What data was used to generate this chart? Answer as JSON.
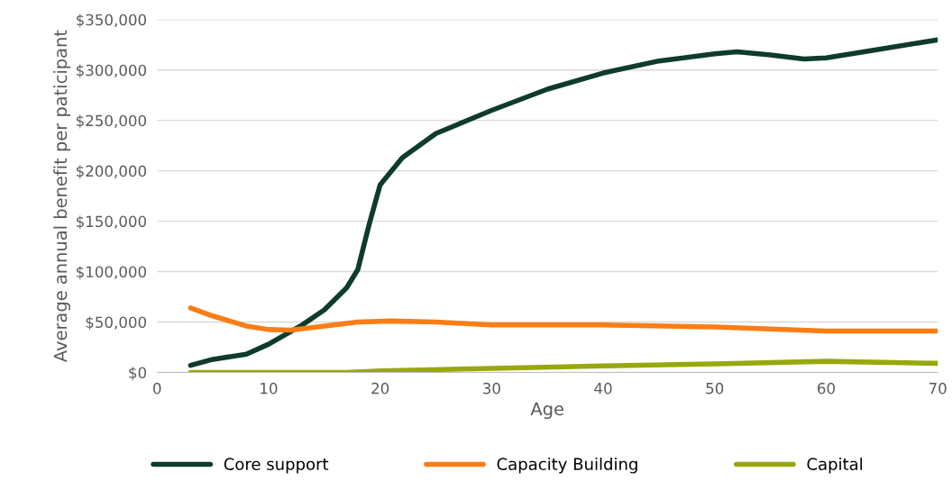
{
  "chart_data": {
    "type": "line",
    "xlabel": "Age",
    "ylabel": "Average annual benefit per paticipant",
    "xlim": [
      0,
      70
    ],
    "xticks": [
      0,
      10,
      20,
      30,
      40,
      50,
      60,
      70
    ],
    "ylim": [
      0,
      350000
    ],
    "yticks": [
      {
        "value": 0,
        "label": "$0"
      },
      {
        "value": 50000,
        "label": "$50,000"
      },
      {
        "value": 100000,
        "label": "$100,000"
      },
      {
        "value": 150000,
        "label": "$150,000"
      },
      {
        "value": 200000,
        "label": "$200,000"
      },
      {
        "value": 250000,
        "label": "$250,000"
      },
      {
        "value": 300000,
        "label": "$300,000"
      },
      {
        "value": 350000,
        "label": "$350,000"
      }
    ],
    "grid": "y",
    "legend": "bottom",
    "marker": "none",
    "line_style": "solid",
    "series": [
      {
        "name": "Core support",
        "color": "#0e3b2c",
        "x": [
          3,
          5,
          8,
          10,
          13,
          15,
          17,
          18,
          19,
          20,
          22,
          25,
          30,
          35,
          40,
          45,
          50,
          52,
          55,
          58,
          60,
          65,
          70
        ],
        "values": [
          7000,
          13000,
          18000,
          28000,
          47000,
          62000,
          84000,
          102000,
          146000,
          186000,
          213000,
          237000,
          260000,
          281000,
          297000,
          309000,
          316000,
          318000,
          315000,
          311000,
          312000,
          321000,
          330000
        ]
      },
      {
        "name": "Capacity Building",
        "color": "#fb7d14",
        "x": [
          3,
          5,
          8,
          10,
          12,
          15,
          18,
          21,
          25,
          30,
          40,
          50,
          60,
          70
        ],
        "values": [
          64000,
          56000,
          46000,
          42500,
          42000,
          46000,
          50000,
          51000,
          50000,
          47000,
          47000,
          45000,
          41000,
          41000
        ]
      },
      {
        "name": "Capital",
        "color": "#97a80c",
        "x": [
          3,
          10,
          17,
          20,
          30,
          40,
          50,
          60,
          70
        ],
        "values": [
          0,
          0,
          0,
          1500,
          4000,
          6500,
          8500,
          11000,
          9000
        ]
      }
    ]
  }
}
